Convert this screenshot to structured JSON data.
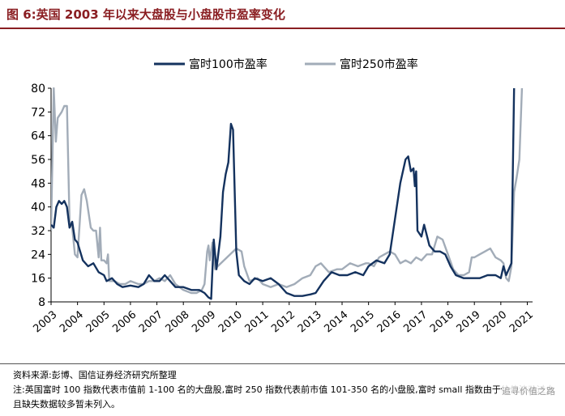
{
  "header": {
    "title": "图 6:英国 2003 年以来大盘股与小盘股市盈率变化"
  },
  "footer": {
    "source": "资料来源:彭博、国信证券经济研究所整理",
    "note": "注:英国富时 100 指数代表市值前 1-100 名的大盘股,富时 250 指数代表前市值 101-350 名的小盘股,富时 small 指数由于估值波动过大且缺失数据较多暂未列入。",
    "watermark": "追寻价值之路"
  },
  "colors": {
    "large_cap": "#14325e",
    "small_cap": "#a2acb8",
    "title": "#8a1e22"
  },
  "chart_data": {
    "type": "line",
    "title": "",
    "xlabel": "",
    "ylabel": "",
    "ylim": [
      8,
      80
    ],
    "xlim": [
      2003,
      2021.2
    ],
    "yticks": [
      8,
      16,
      24,
      32,
      40,
      48,
      56,
      64,
      72,
      80
    ],
    "ytick_labels": [
      "8",
      "16",
      "24",
      "32",
      "40",
      "48",
      "56",
      "64",
      "72",
      "80"
    ],
    "xticks": [
      2003,
      2004,
      2005,
      2006,
      2007,
      2008,
      2009,
      2010,
      2011,
      2012,
      2013,
      2014,
      2015,
      2016,
      2017,
      2018,
      2019,
      2020,
      2021
    ],
    "xtick_labels": [
      "2003",
      "2004",
      "2005",
      "2006",
      "2007",
      "2008",
      "2009",
      "2010",
      "2011",
      "2012",
      "2013",
      "2014",
      "2015",
      "2016",
      "2017",
      "2018",
      "2019",
      "2020",
      "2021"
    ],
    "grid": false,
    "legend_position": "top-center",
    "series": [
      {
        "name": "富时100市盈率",
        "points": [
          [
            2003.0,
            34
          ],
          [
            2003.1,
            33
          ],
          [
            2003.2,
            40
          ],
          [
            2003.3,
            42
          ],
          [
            2003.4,
            41
          ],
          [
            2003.5,
            42
          ],
          [
            2003.6,
            40
          ],
          [
            2003.7,
            33
          ],
          [
            2003.8,
            35
          ],
          [
            2003.9,
            29
          ],
          [
            2004.0,
            28
          ],
          [
            2004.2,
            22
          ],
          [
            2004.4,
            20
          ],
          [
            2004.6,
            21
          ],
          [
            2004.8,
            18
          ],
          [
            2005.0,
            17
          ],
          [
            2005.1,
            15
          ],
          [
            2005.3,
            16
          ],
          [
            2005.5,
            14
          ],
          [
            2005.7,
            13
          ],
          [
            2006.0,
            13.5
          ],
          [
            2006.3,
            13
          ],
          [
            2006.5,
            14
          ],
          [
            2006.7,
            17
          ],
          [
            2006.9,
            15
          ],
          [
            2007.1,
            15
          ],
          [
            2007.3,
            17
          ],
          [
            2007.5,
            15
          ],
          [
            2007.7,
            13
          ],
          [
            2008.0,
            13
          ],
          [
            2008.3,
            12
          ],
          [
            2008.6,
            12
          ],
          [
            2008.8,
            11
          ],
          [
            2008.95,
            9.5
          ],
          [
            2009.05,
            9
          ],
          [
            2009.15,
            29
          ],
          [
            2009.25,
            19
          ],
          [
            2009.4,
            30
          ],
          [
            2009.5,
            45
          ],
          [
            2009.6,
            51
          ],
          [
            2009.7,
            55
          ],
          [
            2009.8,
            68
          ],
          [
            2009.88,
            66
          ],
          [
            2010.0,
            25
          ],
          [
            2010.1,
            17
          ],
          [
            2010.3,
            15
          ],
          [
            2010.5,
            14
          ],
          [
            2010.7,
            16
          ],
          [
            2011.0,
            15
          ],
          [
            2011.3,
            16
          ],
          [
            2011.6,
            14
          ],
          [
            2011.9,
            11
          ],
          [
            2012.2,
            10
          ],
          [
            2012.5,
            10
          ],
          [
            2012.8,
            10.5
          ],
          [
            2013.0,
            11
          ],
          [
            2013.3,
            15
          ],
          [
            2013.6,
            18
          ],
          [
            2013.9,
            17
          ],
          [
            2014.2,
            17
          ],
          [
            2014.5,
            18
          ],
          [
            2014.8,
            17
          ],
          [
            2015.0,
            20
          ],
          [
            2015.3,
            22
          ],
          [
            2015.6,
            21
          ],
          [
            2015.8,
            24
          ],
          [
            2016.0,
            36
          ],
          [
            2016.2,
            48
          ],
          [
            2016.4,
            56
          ],
          [
            2016.5,
            57
          ],
          [
            2016.6,
            52
          ],
          [
            2016.7,
            53
          ],
          [
            2016.75,
            47
          ],
          [
            2016.8,
            52
          ],
          [
            2016.85,
            32
          ],
          [
            2017.0,
            30
          ],
          [
            2017.1,
            34
          ],
          [
            2017.3,
            27
          ],
          [
            2017.5,
            25
          ],
          [
            2017.7,
            25
          ],
          [
            2017.9,
            24
          ],
          [
            2018.1,
            20
          ],
          [
            2018.3,
            17
          ],
          [
            2018.6,
            16
          ],
          [
            2018.9,
            16
          ],
          [
            2019.2,
            16
          ],
          [
            2019.5,
            17
          ],
          [
            2019.8,
            17
          ],
          [
            2020.0,
            16
          ],
          [
            2020.1,
            20
          ],
          [
            2020.2,
            17
          ],
          [
            2020.3,
            19
          ],
          [
            2020.4,
            21
          ],
          [
            2020.5,
            80
          ]
        ]
      },
      {
        "name": "富时250市盈率",
        "points": [
          [
            2003.0,
            32
          ],
          [
            2003.1,
            80
          ],
          [
            2003.18,
            62
          ],
          [
            2003.25,
            70
          ],
          [
            2003.4,
            72
          ],
          [
            2003.5,
            74
          ],
          [
            2003.6,
            74
          ],
          [
            2003.7,
            35
          ],
          [
            2003.8,
            33
          ],
          [
            2003.9,
            24
          ],
          [
            2004.0,
            23
          ],
          [
            2004.15,
            44
          ],
          [
            2004.25,
            46
          ],
          [
            2004.35,
            42
          ],
          [
            2004.5,
            33
          ],
          [
            2004.6,
            32
          ],
          [
            2004.7,
            32
          ],
          [
            2004.8,
            23
          ],
          [
            2004.85,
            33
          ],
          [
            2004.9,
            22
          ],
          [
            2005.0,
            22
          ],
          [
            2005.1,
            21
          ],
          [
            2005.15,
            24
          ],
          [
            2005.2,
            15
          ],
          [
            2005.4,
            15
          ],
          [
            2005.6,
            14
          ],
          [
            2005.8,
            14
          ],
          [
            2006.0,
            15
          ],
          [
            2006.3,
            14
          ],
          [
            2006.5,
            14
          ],
          [
            2006.7,
            15
          ],
          [
            2006.9,
            15
          ],
          [
            2007.1,
            16
          ],
          [
            2007.3,
            15
          ],
          [
            2007.5,
            17
          ],
          [
            2007.7,
            14
          ],
          [
            2008.0,
            12
          ],
          [
            2008.3,
            11
          ],
          [
            2008.5,
            11
          ],
          [
            2008.7,
            12
          ],
          [
            2008.8,
            14
          ],
          [
            2008.9,
            25
          ],
          [
            2008.95,
            27
          ],
          [
            2009.0,
            22
          ],
          [
            2009.1,
            28
          ],
          [
            2009.2,
            19
          ],
          [
            2009.3,
            20
          ],
          [
            2010.0,
            26
          ],
          [
            2010.2,
            25
          ],
          [
            2010.3,
            20
          ],
          [
            2010.5,
            15
          ],
          [
            2010.8,
            16
          ],
          [
            2011.0,
            14
          ],
          [
            2011.3,
            13
          ],
          [
            2011.6,
            14
          ],
          [
            2011.9,
            13
          ],
          [
            2012.2,
            14
          ],
          [
            2012.5,
            16
          ],
          [
            2012.8,
            17
          ],
          [
            2013.0,
            20
          ],
          [
            2013.2,
            21
          ],
          [
            2013.5,
            18
          ],
          [
            2013.8,
            19
          ],
          [
            2014.0,
            19
          ],
          [
            2014.3,
            21
          ],
          [
            2014.6,
            20
          ],
          [
            2014.9,
            21
          ],
          [
            2015.0,
            21
          ],
          [
            2015.2,
            20
          ],
          [
            2015.4,
            23
          ],
          [
            2015.6,
            24
          ],
          [
            2015.8,
            25
          ],
          [
            2016.0,
            24
          ],
          [
            2016.2,
            21
          ],
          [
            2016.4,
            22
          ],
          [
            2016.6,
            21
          ],
          [
            2016.8,
            23
          ],
          [
            2017.0,
            22
          ],
          [
            2017.2,
            24
          ],
          [
            2017.4,
            24
          ],
          [
            2017.6,
            30
          ],
          [
            2017.8,
            29
          ],
          [
            2018.0,
            24
          ],
          [
            2018.2,
            19
          ],
          [
            2018.4,
            17
          ],
          [
            2018.6,
            17
          ],
          [
            2018.8,
            18
          ],
          [
            2018.9,
            23
          ],
          [
            2019.0,
            23
          ],
          [
            2019.2,
            24
          ],
          [
            2019.4,
            25
          ],
          [
            2019.6,
            26
          ],
          [
            2019.8,
            23
          ],
          [
            2020.0,
            22
          ],
          [
            2020.1,
            21
          ],
          [
            2020.2,
            16
          ],
          [
            2020.3,
            15
          ],
          [
            2020.4,
            20
          ],
          [
            2020.5,
            45
          ],
          [
            2020.6,
            50
          ],
          [
            2020.7,
            56
          ],
          [
            2020.8,
            80
          ]
        ]
      }
    ]
  }
}
